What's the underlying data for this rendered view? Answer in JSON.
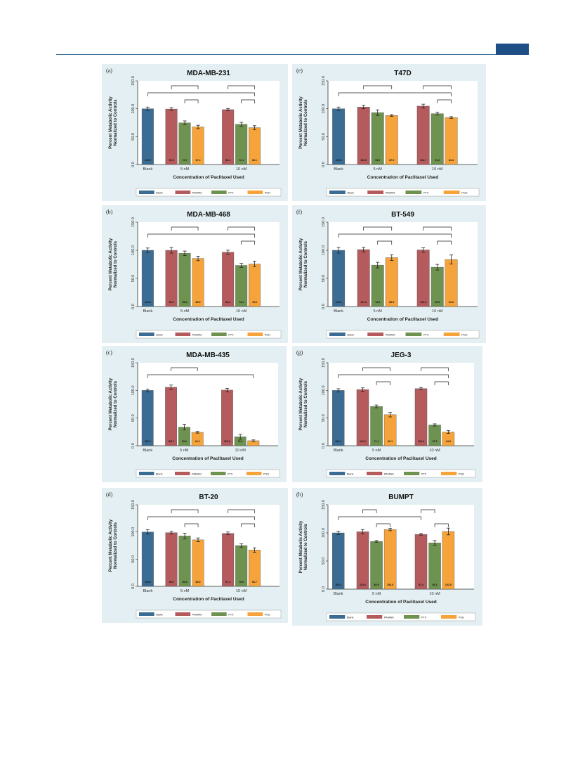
{
  "page": {
    "accent": "#1e4f86"
  },
  "colors": {
    "Blank": "#3b6d94",
    "PAMAM": "#b55b5e",
    "PTX": "#6e924f",
    "PGD": "#f5a33a"
  },
  "panels": [
    {
      "letter": "(a)",
      "title": "MDA-MB-231",
      "chart_data": {
        "type": "bar",
        "categories": [
          "Blank",
          "5 nM",
          "10 nM"
        ],
        "series": [
          {
            "name": "Blank",
            "values": [
              100.0,
              null,
              null
            ],
            "errors": [
              3,
              null,
              null
            ],
            "labels": [
              "100.0",
              "",
              ""
            ]
          },
          {
            "name": "PAMAM",
            "values": [
              null,
              99.5,
              98.4
            ],
            "errors": [
              null,
              2.5,
              2
            ],
            "labels": [
              "",
              "99.5",
              "98.4"
            ]
          },
          {
            "name": "PTX",
            "values": [
              null,
              74.7,
              72.1
            ],
            "errors": [
              null,
              3.5,
              3.5
            ],
            "labels": [
              "",
              "74.7",
              "72.1"
            ]
          },
          {
            "name": "PGD",
            "values": [
              null,
              67.4,
              66.1
            ],
            "errors": [
              null,
              3,
              3.5
            ],
            "labels": [
              "",
              "67.4",
              "66.1"
            ]
          }
        ],
        "ylim": [
          0,
          150
        ],
        "yticks": [
          "0.0",
          "50.0",
          "100.0",
          "150.0"
        ],
        "xlabel": "Concentration of Paclitaxel Used",
        "ylabel": [
          "Percent Metabolic Activity",
          "Normalized to Controls"
        ],
        "legend": [
          "Blank",
          "PAMAM",
          "PTX",
          "PGD"
        ],
        "brackets": [
          [
            0,
            6,
            0
          ],
          [
            1,
            3,
            1
          ],
          [
            4,
            6,
            1
          ],
          [
            2,
            3,
            2
          ],
          [
            5,
            6,
            2
          ]
        ]
      }
    },
    {
      "letter": "(e)",
      "title": "T47D",
      "chart_data": {
        "type": "bar",
        "categories": [
          "Blank",
          "5 nM",
          "10 nM"
        ],
        "series": [
          {
            "name": "Blank",
            "values": [
              100.0,
              null,
              null
            ],
            "errors": [
              3,
              null,
              null
            ],
            "labels": [
              "100.0",
              "",
              ""
            ]
          },
          {
            "name": "PAMAM",
            "values": [
              null,
              103.0,
              104.7
            ],
            "errors": [
              null,
              3,
              3.5
            ],
            "labels": [
              "",
              "103.0",
              "104.7"
            ]
          },
          {
            "name": "PTX",
            "values": [
              null,
              93.0,
              91.2
            ],
            "errors": [
              null,
              5,
              2.5
            ],
            "labels": [
              "",
              "93.0",
              "91.2"
            ]
          },
          {
            "name": "PGD",
            "values": [
              null,
              87.9,
              84.3
            ],
            "errors": [
              null,
              1.5,
              1.5
            ],
            "labels": [
              "",
              "87.9",
              "84.3"
            ]
          }
        ],
        "ylim": [
          0,
          150
        ],
        "yticks": [
          "0.0",
          "50.0",
          "100.0",
          "150.0"
        ],
        "xlabel": "Concentration of Paclitaxel Used",
        "ylabel": [
          "Percent Metabolic Activity",
          "Normalized to Controls"
        ],
        "legend": [
          "Blank",
          "PAMAM",
          "PTX",
          "PGD"
        ],
        "brackets": [
          [
            0,
            6,
            0
          ],
          [
            1,
            3,
            1
          ],
          [
            4,
            6,
            1
          ],
          [
            5,
            6,
            2
          ]
        ]
      }
    },
    {
      "letter": "(b)",
      "title": "MDA-MB-468",
      "chart_data": {
        "type": "bar",
        "categories": [
          "Blank",
          "5 nM",
          "10 nM"
        ],
        "series": [
          {
            "name": "Blank",
            "values": [
              100.0,
              null,
              null
            ],
            "errors": [
              4,
              null,
              null
            ],
            "labels": [
              "100.0",
              "",
              ""
            ]
          },
          {
            "name": "PAMAM",
            "values": [
              null,
              99.9,
              96.6
            ],
            "errors": [
              null,
              5,
              3.5
            ],
            "labels": [
              "",
              "99.9",
              "96.6"
            ]
          },
          {
            "name": "PTX",
            "values": [
              null,
              94.6,
              73.1
            ],
            "errors": [
              null,
              4,
              3.5
            ],
            "labels": [
              "",
              "94.6",
              "73.1"
            ]
          },
          {
            "name": "PGD",
            "values": [
              null,
              85.5,
              75.6
            ],
            "errors": [
              null,
              4,
              5
            ],
            "labels": [
              "",
              "85.5",
              "75.6"
            ]
          }
        ],
        "ylim": [
          0,
          150
        ],
        "yticks": [
          "0.0",
          "50.0",
          "100.0",
          "150.0"
        ],
        "xlabel": "Concentration of Paclitaxel Used",
        "ylabel": [
          "Percent Metabolic Activity",
          "Normalized to Controls"
        ],
        "legend": [
          "Blank",
          "PAMAM",
          "PTX",
          "PGD"
        ],
        "brackets": [
          [
            0,
            6,
            0
          ],
          [
            1,
            3,
            1
          ],
          [
            4,
            6,
            1
          ],
          [
            5,
            6,
            2
          ]
        ]
      }
    },
    {
      "letter": "(f)",
      "title": "BT-549",
      "chart_data": {
        "type": "bar",
        "categories": [
          "Blank",
          "5 nM",
          "10 nM"
        ],
        "series": [
          {
            "name": "Blank",
            "values": [
              100.0,
              null,
              null
            ],
            "errors": [
              5,
              null,
              null
            ],
            "labels": [
              "100.0",
              "",
              ""
            ]
          },
          {
            "name": "PAMAM",
            "values": [
              null,
              101.2,
              100.6
            ],
            "errors": [
              null,
              4,
              4
            ],
            "labels": [
              "",
              "101.2",
              "100.6"
            ]
          },
          {
            "name": "PTX",
            "values": [
              null,
              73.6,
              69.9
            ],
            "errors": [
              null,
              5,
              5
            ],
            "labels": [
              "",
              "73.6",
              "69.9"
            ]
          },
          {
            "name": "PGD",
            "values": [
              null,
              86.9,
              83.6
            ],
            "errors": [
              null,
              5,
              8
            ],
            "labels": [
              "",
              "86.9",
              "83.6"
            ]
          }
        ],
        "ylim": [
          0,
          150
        ],
        "yticks": [
          "0.0",
          "50.0",
          "100.0",
          "150.0"
        ],
        "xlabel": "Concentration of Paclitaxel Used",
        "ylabel": [
          "Percent Metabolic Activity",
          "Normalized to Controls"
        ],
        "legend": [
          "Blank",
          "PAMAM",
          "PTX",
          "PGD"
        ],
        "brackets": [
          [
            0,
            6,
            0
          ],
          [
            1,
            3,
            1
          ],
          [
            4,
            6,
            1
          ],
          [
            2,
            3,
            2
          ],
          [
            5,
            6,
            2
          ]
        ]
      }
    },
    {
      "letter": "(c)",
      "title": "MDA-MB-435",
      "chart_data": {
        "type": "bar",
        "categories": [
          "Blank",
          "5 nM",
          "10 nM"
        ],
        "series": [
          {
            "name": "Blank",
            "values": [
              100.0,
              null,
              null
            ],
            "errors": [
              2.5,
              null,
              null
            ],
            "labels": [
              "100.0",
              "",
              ""
            ]
          },
          {
            "name": "PAMAM",
            "values": [
              null,
              105.7,
              100.6
            ],
            "errors": [
              null,
              4,
              3
            ],
            "labels": [
              "",
              "105.7",
              "100.6"
            ]
          },
          {
            "name": "PTX",
            "values": [
              null,
              33.6,
              16.1
            ],
            "errors": [
              null,
              5,
              4.5
            ],
            "labels": [
              "",
              "33.6",
              "16.1"
            ]
          },
          {
            "name": "PGD",
            "values": [
              null,
              24.2,
              9.0
            ],
            "errors": [
              null,
              1.5,
              1.5
            ],
            "labels": [
              "",
              "24.2",
              ""
            ]
          }
        ],
        "ylim": [
          0,
          150
        ],
        "yticks": [
          "0.0",
          "50.0",
          "100.0",
          "150.0"
        ],
        "xlabel": "Concentration of Paclitaxel Used",
        "ylabel": [
          "Percent Metabolic Activity",
          "Normalized to Controls"
        ],
        "legend": [
          "Blank",
          "PAMAM",
          "PTX",
          "PGD"
        ],
        "brackets": [
          [
            0,
            6,
            0
          ],
          [
            1,
            3,
            1
          ]
        ]
      }
    },
    {
      "letter": "(g)",
      "title": "JEG-3",
      "chart_data": {
        "type": "bar",
        "categories": [
          "Blank",
          "5 nM",
          "10 nM"
        ],
        "series": [
          {
            "name": "Blank",
            "values": [
              100.0,
              null,
              null
            ],
            "errors": [
              3,
              null,
              null
            ],
            "labels": [
              "100.0",
              "",
              ""
            ]
          },
          {
            "name": "PAMAM",
            "values": [
              null,
              101.6,
              103.3
            ],
            "errors": [
              null,
              3,
              2
            ],
            "labels": [
              "",
              "101.6",
              "103.3"
            ]
          },
          {
            "name": "PTX",
            "values": [
              null,
              71.1,
              37.5
            ],
            "errors": [
              null,
              2.5,
              2
            ],
            "labels": [
              "",
              "71.1",
              "37.5"
            ]
          },
          {
            "name": "PGD",
            "values": [
              null,
              56.1,
              24.8
            ],
            "errors": [
              null,
              4,
              2.5
            ],
            "labels": [
              "",
              "56.1",
              "24.8"
            ]
          }
        ],
        "ylim": [
          0,
          150
        ],
        "yticks": [
          "0.0",
          "50.0",
          "100.0",
          "150.0"
        ],
        "xlabel": "Concentration of Paclitaxel Used",
        "ylabel": [
          "Percent Metabolic Activity",
          "Normalized to Controls"
        ],
        "legend": [
          "Blank",
          "PAMAM",
          "PTX",
          "PGD"
        ],
        "brackets": [
          [
            0,
            6,
            0
          ],
          [
            1,
            3,
            1
          ],
          [
            4,
            6,
            1
          ],
          [
            2,
            3,
            2
          ],
          [
            5,
            6,
            2
          ]
        ]
      }
    },
    {
      "letter": "(d)",
      "title": "BT-20",
      "chart_data": {
        "type": "bar",
        "categories": [
          "Blank",
          "5 nM",
          "10 nM"
        ],
        "series": [
          {
            "name": "Blank",
            "values": [
              100.0,
              null,
              null
            ],
            "errors": [
              4,
              null,
              null
            ],
            "labels": [
              "100.0",
              "",
              ""
            ]
          },
          {
            "name": "PAMAM",
            "values": [
              null,
              98.6,
              97.4
            ],
            "errors": [
              null,
              2.5,
              2.5
            ],
            "labels": [
              "",
              "98.6",
              "97.4"
            ]
          },
          {
            "name": "PTX",
            "values": [
              null,
              92.6,
              75.0
            ],
            "errors": [
              null,
              5,
              3
            ],
            "labels": [
              "",
              "92.6",
              "75.0"
            ]
          },
          {
            "name": "PGD",
            "values": [
              null,
              85.5,
              66.7
            ],
            "errors": [
              null,
              3.5,
              4
            ],
            "labels": [
              "",
              "85.5",
              "66.7"
            ]
          }
        ],
        "ylim": [
          0,
          150
        ],
        "yticks": [
          "0.0",
          "50.0",
          "100.0",
          "150.0"
        ],
        "xlabel": "Concentration of Paclitaxel Used",
        "ylabel": [
          "Percent Metabolic Activity",
          "Normalized to Controls"
        ],
        "legend": [
          "Blank",
          "PAMAM",
          "PTX",
          "PGD"
        ],
        "brackets": [
          [
            0,
            6,
            0
          ],
          [
            1,
            3,
            1
          ],
          [
            4,
            6,
            1
          ],
          [
            2,
            3,
            2
          ],
          [
            5,
            6,
            2
          ]
        ]
      }
    },
    {
      "letter": "(h)",
      "title": "BUMPT",
      "chart_data": {
        "type": "bar",
        "categories": [
          "Blank",
          "5 nM",
          "10 nM"
        ],
        "series": [
          {
            "name": "Blank",
            "values": [
              100.0,
              null,
              null
            ],
            "errors": [
              3,
              null,
              null
            ],
            "labels": [
              "100.0",
              "",
              ""
            ]
          },
          {
            "name": "PAMAM",
            "values": [
              null,
              102.0,
              97.4
            ],
            "errors": [
              null,
              4,
              1.5
            ],
            "labels": [
              "",
              "102.0",
              "97.4"
            ]
          },
          {
            "name": "PTX",
            "values": [
              null,
              84.9,
              82.3
            ],
            "errors": [
              null,
              1.5,
              4
            ],
            "labels": [
              "",
              "84.9",
              "82.3"
            ]
          },
          {
            "name": "PGD",
            "values": [
              null,
              106.0,
              102.5
            ],
            "errors": [
              null,
              2,
              6
            ],
            "labels": [
              "",
              "106.0",
              "102.5"
            ]
          }
        ],
        "ylim": [
          0,
          150
        ],
        "yticks": [
          "0.0",
          "50.0",
          "100.0",
          "150.0"
        ],
        "xlabel": "Concentration of Paclitaxel Used",
        "ylabel": [
          "Percent Metabolic Activity",
          "Normalized to Controls"
        ],
        "legend": [
          "Blank",
          "PAMAM",
          "PTX",
          "PGD"
        ],
        "brackets": [
          [
            0,
            4,
            0
          ],
          [
            1,
            2,
            1
          ],
          [
            4,
            5,
            1
          ],
          [
            2,
            3,
            2
          ],
          [
            5,
            6,
            2
          ]
        ]
      }
    }
  ]
}
